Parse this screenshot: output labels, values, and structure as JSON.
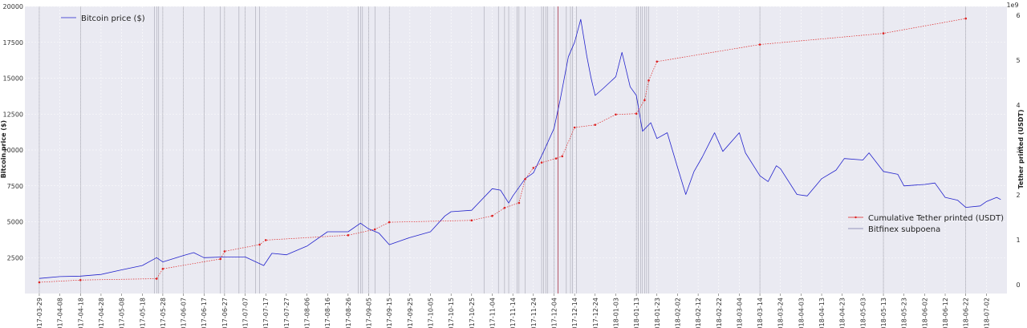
{
  "chart_data": {
    "type": "line",
    "title": "",
    "ylabel": "Bitcoin price ($)",
    "y2label": "Tether printed (USDT)",
    "y2_scale_label": "1e9",
    "ylim": [
      0,
      20000
    ],
    "y2lim": [
      -0.2,
      6.2
    ],
    "yticks": [
      2500,
      5000,
      7500,
      10000,
      12500,
      15000,
      17500,
      20000
    ],
    "y2ticks": [
      0,
      1,
      2,
      3,
      4,
      5,
      6
    ],
    "xlim": [
      "2017-03-22",
      "2018-07-12"
    ],
    "xticks": [
      "2017-03-29",
      "2017-04-08",
      "2017-04-18",
      "2017-04-28",
      "2017-05-08",
      "2017-05-18",
      "2017-05-28",
      "2017-06-07",
      "2017-06-17",
      "2017-06-27",
      "2017-07-07",
      "2017-07-17",
      "2017-07-27",
      "2017-08-06",
      "2017-08-16",
      "2017-08-26",
      "2017-09-05",
      "2017-09-15",
      "2017-09-25",
      "2017-10-05",
      "2017-10-15",
      "2017-10-25",
      "2017-11-04",
      "2017-11-14",
      "2017-11-24",
      "2017-12-04",
      "2017-12-14",
      "2017-12-24",
      "2018-01-03",
      "2018-01-13",
      "2018-01-23",
      "2018-02-02",
      "2018-02-12",
      "2018-02-22",
      "2018-03-04",
      "2018-03-14",
      "2018-03-24",
      "2018-04-03",
      "2018-04-13",
      "2018-04-23",
      "2018-05-03",
      "2018-05-13",
      "2018-05-23",
      "2018-06-02",
      "2018-06-12",
      "2018-06-22",
      "2018-07-02"
    ],
    "grid": true,
    "legend_upper": "top-left",
    "legend_lower": "right",
    "series": [
      {
        "name": "Bitcoin price ($)",
        "axis": "left",
        "color": "#2222cc",
        "x": [
          "2017-03-29",
          "2017-04-08",
          "2017-04-18",
          "2017-04-28",
          "2017-05-08",
          "2017-05-18",
          "2017-05-25",
          "2017-05-28",
          "2017-06-07",
          "2017-06-12",
          "2017-06-17",
          "2017-06-27",
          "2017-07-07",
          "2017-07-16",
          "2017-07-20",
          "2017-07-27",
          "2017-08-06",
          "2017-08-16",
          "2017-08-26",
          "2017-09-01",
          "2017-09-05",
          "2017-09-10",
          "2017-09-15",
          "2017-09-25",
          "2017-10-05",
          "2017-10-12",
          "2017-10-15",
          "2017-10-25",
          "2017-11-04",
          "2017-11-08",
          "2017-11-12",
          "2017-11-14",
          "2017-11-20",
          "2017-11-24",
          "2017-11-29",
          "2017-12-04",
          "2017-12-07",
          "2017-12-11",
          "2017-12-14",
          "2017-12-17",
          "2017-12-20",
          "2017-12-22",
          "2017-12-24",
          "2017-12-28",
          "2018-01-03",
          "2018-01-06",
          "2018-01-10",
          "2018-01-13",
          "2018-01-16",
          "2018-01-20",
          "2018-01-23",
          "2018-01-28",
          "2018-02-02",
          "2018-02-06",
          "2018-02-10",
          "2018-02-14",
          "2018-02-20",
          "2018-02-24",
          "2018-03-04",
          "2018-03-07",
          "2018-03-14",
          "2018-03-18",
          "2018-03-22",
          "2018-03-24",
          "2018-04-01",
          "2018-04-06",
          "2018-04-13",
          "2018-04-20",
          "2018-04-24",
          "2018-05-03",
          "2018-05-06",
          "2018-05-13",
          "2018-05-20",
          "2018-05-23",
          "2018-06-02",
          "2018-06-07",
          "2018-06-12",
          "2018-06-18",
          "2018-06-22",
          "2018-06-29",
          "2018-07-02",
          "2018-07-07",
          "2018-07-09"
        ],
        "values": [
          1050,
          1180,
          1210,
          1330,
          1650,
          1950,
          2500,
          2200,
          2650,
          2850,
          2500,
          2550,
          2550,
          1950,
          2800,
          2700,
          3300,
          4300,
          4300,
          4900,
          4500,
          4200,
          3400,
          3900,
          4300,
          5400,
          5700,
          5800,
          7300,
          7200,
          6300,
          6800,
          8000,
          8400,
          9900,
          11500,
          13500,
          16500,
          17500,
          19100,
          16500,
          15000,
          13800,
          14300,
          15100,
          16800,
          14400,
          13800,
          11300,
          11900,
          10800,
          11200,
          8800,
          6900,
          8500,
          9500,
          11200,
          9900,
          11200,
          9800,
          8200,
          7800,
          8900,
          8700,
          6900,
          6800,
          8000,
          8600,
          9400,
          9300,
          9800,
          8500,
          8300,
          7500,
          7600,
          7700,
          6700,
          6500,
          6000,
          6100,
          6400,
          6700,
          6550
        ]
      },
      {
        "name": "Cumulative Tether printed (USDT)",
        "axis": "right",
        "color": "#dd2222",
        "x": [
          "2017-03-29",
          "2017-04-18",
          "2017-05-25",
          "2017-05-28",
          "2017-06-25",
          "2017-06-27",
          "2017-07-14",
          "2017-07-17",
          "2017-08-26",
          "2017-09-08",
          "2017-09-15",
          "2017-10-25",
          "2017-11-04",
          "2017-11-10",
          "2017-11-17",
          "2017-11-20",
          "2017-11-24",
          "2017-11-28",
          "2017-12-05",
          "2017-12-08",
          "2017-12-14",
          "2017-12-24",
          "2018-01-03",
          "2018-01-13",
          "2018-01-17",
          "2018-01-19",
          "2018-01-23",
          "2018-03-14",
          "2018-05-13",
          "2018-06-22"
        ],
        "values": [
          0.05,
          0.1,
          0.13,
          0.35,
          0.57,
          0.74,
          0.89,
          0.99,
          1.1,
          1.23,
          1.39,
          1.43,
          1.53,
          1.71,
          1.82,
          2.35,
          2.6,
          2.72,
          2.81,
          2.86,
          3.5,
          3.56,
          3.79,
          3.81,
          4.11,
          4.55,
          4.97,
          5.35,
          5.6,
          5.93
        ]
      },
      {
        "name": "Bitfinex subpoena",
        "axis": "none",
        "color": "#7777aa",
        "type": "vline",
        "x": [
          "2017-12-06"
        ]
      }
    ],
    "event_lines": [
      "2017-03-29",
      "2017-04-18",
      "2017-05-24",
      "2017-05-25",
      "2017-05-26",
      "2017-05-28",
      "2017-06-07",
      "2017-06-17",
      "2017-06-25",
      "2017-06-27",
      "2017-07-04",
      "2017-07-07",
      "2017-07-12",
      "2017-07-14",
      "2017-08-31",
      "2017-09-01",
      "2017-09-02",
      "2017-09-05",
      "2017-09-08",
      "2017-09-15",
      "2017-10-31",
      "2017-11-07",
      "2017-11-10",
      "2017-11-12",
      "2017-11-16",
      "2017-11-17",
      "2017-11-20",
      "2017-11-28",
      "2017-11-29",
      "2017-11-30",
      "2017-12-01",
      "2017-12-04",
      "2017-12-10",
      "2017-12-12",
      "2017-12-13",
      "2017-12-15",
      "2018-01-13",
      "2018-01-14",
      "2018-01-15",
      "2018-01-16",
      "2018-01-17",
      "2018-01-18",
      "2018-01-19",
      "2018-03-14",
      "2018-05-13",
      "2018-06-22"
    ]
  }
}
